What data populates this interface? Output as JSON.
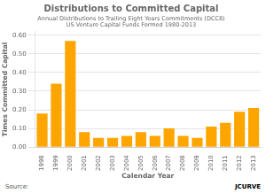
{
  "chart_data": {
    "type": "bar",
    "title": "Distributions to Committed Capital",
    "subtitle": [
      "Annual Distributions to Trailing Eight Years Commitments (DCC8)",
      "US Venture Capital Funds Formed 1980-2013"
    ],
    "x_label": "Calendar Year",
    "y_label": "Times Committed Capital",
    "categories": [
      "1998",
      "1999",
      "2000",
      "2001",
      "2002",
      "2003",
      "2004",
      "2005",
      "2006",
      "2007",
      "2008",
      "2009",
      "2010",
      "2011",
      "2012",
      "2013"
    ],
    "values": [
      0.18,
      0.34,
      0.57,
      0.08,
      0.05,
      0.05,
      0.06,
      0.08,
      0.06,
      0.1,
      0.06,
      0.05,
      0.11,
      0.13,
      0.19,
      0.21
    ],
    "color": "#FFA500",
    "ylim": [
      0.0,
      0.62
    ],
    "yticks": [
      {
        "value": 0.0,
        "label": "0.00"
      },
      {
        "value": 0.1,
        "label": "0.10"
      },
      {
        "value": 0.2,
        "label": "0.20"
      },
      {
        "value": 0.3,
        "label": "0.30"
      },
      {
        "value": 0.4,
        "label": "0.40"
      },
      {
        "value": 0.5,
        "label": "0.50"
      },
      {
        "value": 0.6,
        "label": "0.60"
      }
    ],
    "grid": true,
    "annotations": [
      "Source:",
      "JCURVE"
    ]
  }
}
